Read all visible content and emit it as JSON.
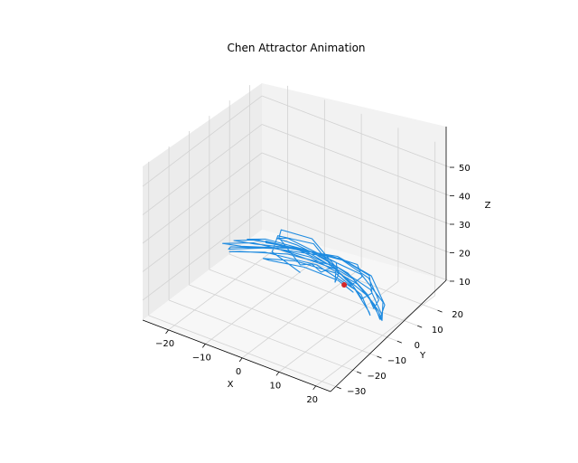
{
  "chart_data": {
    "type": "line",
    "title": "Chen Attractor Animation",
    "xlabel": "X",
    "ylabel": "Y",
    "zlabel": "Z",
    "xlim": [
      -27,
      24
    ],
    "ylim": [
      -33,
      26
    ],
    "zlim": [
      3,
      57
    ],
    "x_ticks": [
      "−20",
      "−10",
      "0",
      "10",
      "20"
    ],
    "x_tick_values": [
      -20,
      -10,
      0,
      10,
      20
    ],
    "y_ticks": [
      "−30",
      "−20",
      "−10",
      "0",
      "10",
      "20"
    ],
    "y_tick_values": [
      -30,
      -20,
      -10,
      0,
      10,
      20
    ],
    "z_ticks": [
      "10",
      "20",
      "30",
      "40",
      "50"
    ],
    "z_tick_values": [
      10,
      20,
      30,
      40,
      50
    ],
    "grid": true,
    "line_color": "#1f8be0",
    "marker_color": "#d62728",
    "current_point": {
      "x": 8.5,
      "y": 2.0,
      "z": 14.0
    },
    "series": [
      {
        "name": "",
        "points": [
          [
            -4.4,
            3.8,
            11
          ],
          [
            -9.7,
            -0.5,
            18
          ],
          [
            -12.5,
            7.5,
            18
          ],
          [
            -6.8,
            14.8,
            14
          ],
          [
            0.8,
            10.2,
            12
          ],
          [
            4.7,
            -2.5,
            19
          ],
          [
            3.8,
            -5.4,
            23
          ],
          [
            -1.5,
            -1.5,
            18
          ],
          [
            -9.8,
            3.1,
            21
          ],
          [
            -14.0,
            11.8,
            17
          ],
          [
            -9.0,
            18.0,
            13
          ],
          [
            0.1,
            13.3,
            10
          ],
          [
            6.9,
            0.4,
            15
          ],
          [
            9.9,
            -3.5,
            21
          ],
          [
            7.8,
            -0.7,
            23
          ],
          [
            0.3,
            4.0,
            20
          ],
          [
            -8.8,
            5.5,
            20
          ],
          [
            -13.5,
            8.7,
            16
          ],
          [
            -11.0,
            14.0,
            12
          ],
          [
            -3.0,
            15.0,
            10
          ],
          [
            5.7,
            6.6,
            13
          ],
          [
            12.6,
            -1.9,
            18
          ],
          [
            14.5,
            -0.1,
            21
          ],
          [
            10.1,
            5.6,
            20
          ],
          [
            1.8,
            8.7,
            17
          ],
          [
            -7.3,
            6.3,
            17
          ],
          [
            -15.0,
            6.1,
            15
          ],
          [
            -17.5,
            10.6,
            12
          ],
          [
            -12.6,
            16.0,
            9
          ],
          [
            -2.4,
            15.6,
            8
          ],
          [
            7.7,
            7.3,
            11
          ],
          [
            15.7,
            -2.3,
            15
          ],
          [
            18.2,
            -1.9,
            18
          ],
          [
            13.5,
            5.3,
            18
          ],
          [
            4.2,
            10.1,
            16
          ],
          [
            -6.0,
            9.2,
            15
          ],
          [
            -14.3,
            5.4,
            16
          ],
          [
            -19.9,
            5.8,
            14
          ],
          [
            -18.7,
            12.6,
            11
          ],
          [
            -10.2,
            18.5,
            8
          ],
          [
            1.6,
            16.4,
            7
          ],
          [
            12.4,
            6.5,
            10
          ],
          [
            19.5,
            -3.4,
            14
          ],
          [
            19.7,
            -1.3,
            16
          ],
          [
            12.7,
            6.5,
            16
          ],
          [
            2.2,
            11.5,
            15
          ],
          [
            -8.5,
            10.0,
            14
          ],
          [
            -17.4,
            5.0,
            14
          ],
          [
            -22.7,
            4.3,
            13
          ],
          [
            -20.6,
            12.2,
            10
          ],
          [
            -10.4,
            18.8,
            7
          ],
          [
            3.2,
            16.0,
            6
          ],
          [
            15.2,
            4.7,
            9
          ],
          [
            21.8,
            -4.6,
            12
          ],
          [
            20.6,
            0.0,
            14
          ],
          [
            11.9,
            9.2,
            15
          ],
          [
            0.5,
            13.3,
            14
          ],
          [
            -10.9,
            10.0,
            13
          ],
          [
            -20.0,
            3.0,
            13
          ],
          [
            -24.7,
            2.4,
            12
          ],
          [
            -21.3,
            11.5,
            9
          ],
          [
            -9.6,
            18.4,
            6
          ],
          [
            5.4,
            14.4,
            6
          ],
          [
            17.4,
            2.7,
            9
          ],
          [
            22.5,
            -4.8,
            12
          ],
          [
            18.9,
            2.2,
            13
          ],
          [
            8.5,
            10.6,
            13
          ],
          [
            -3.4,
            12.2,
            13
          ],
          [
            -14.5,
            7.0,
            13
          ],
          [
            -22.3,
            0.9,
            12
          ],
          [
            -23.8,
            4.8,
            10
          ],
          [
            -16.2,
            14.2,
            8
          ],
          [
            -2.5,
            17.3,
            6
          ],
          [
            11.2,
            9.4,
            7
          ],
          [
            20.8,
            -2.1,
            10
          ],
          [
            21.3,
            -2.5,
            12
          ],
          [
            13.0,
            6.8,
            12
          ],
          [
            1.2,
            11.2,
            12
          ],
          [
            -10.5,
            8.5,
            12
          ],
          [
            -19.6,
            1.8,
            12
          ],
          [
            -22.2,
            1.2,
            11
          ],
          [
            -17.0,
            9.3,
            9
          ],
          [
            -6.0,
            14.8,
            7
          ],
          [
            6.9,
            10.4,
            7
          ],
          [
            16.1,
            0.5,
            9
          ],
          [
            18.4,
            -3.2,
            11
          ],
          [
            12.5,
            3.1,
            12
          ],
          [
            2.6,
            8.2,
            12
          ],
          [
            -7.4,
            6.8,
            12
          ],
          [
            -13.8,
            2.6,
            12
          ],
          [
            -13.0,
            4.0,
            11
          ],
          [
            -5.6,
            8.1,
            10
          ],
          [
            4.4,
            6.6,
            11
          ],
          [
            10.5,
            2.8,
            12
          ],
          [
            8.5,
            2.0,
            14
          ]
        ]
      }
    ]
  }
}
